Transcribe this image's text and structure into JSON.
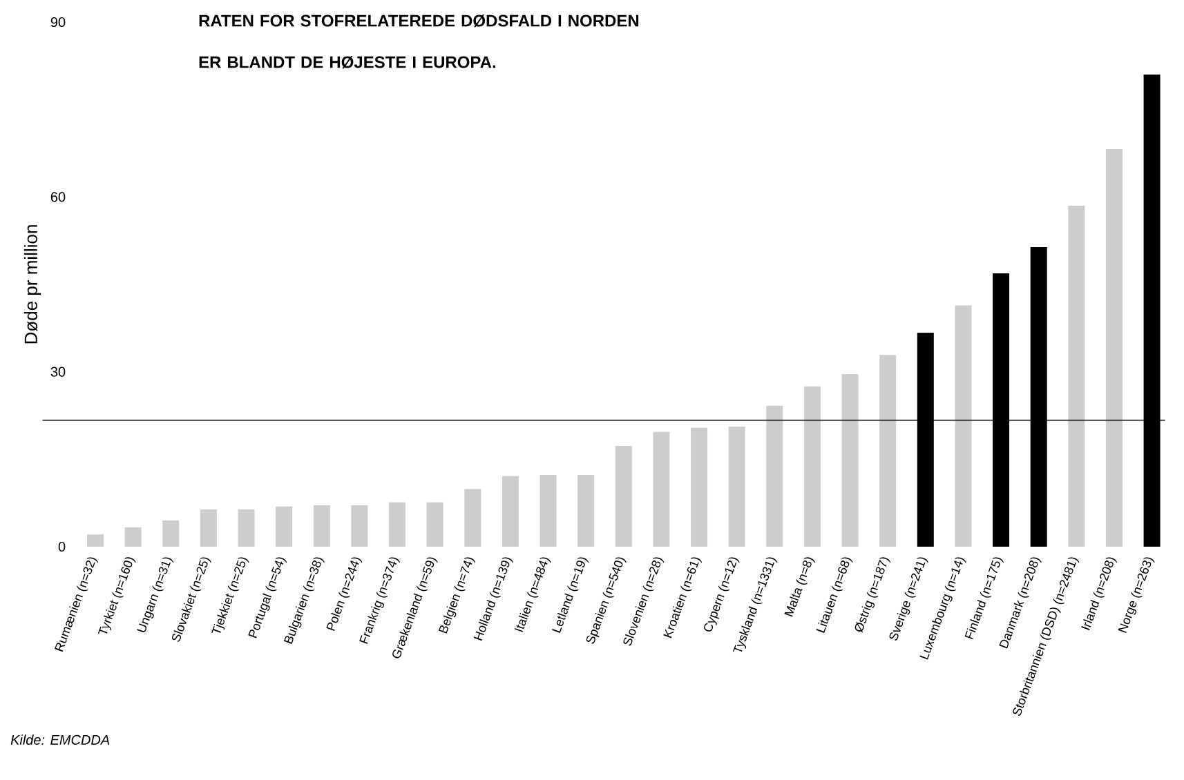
{
  "chart_data": {
    "type": "bar",
    "title": "RATEN FOR STOFRELATEREDE DØDSFALD I NORDEN ER BLANDT DE HØJESTE I EUROPA.",
    "ylabel": "Døde pr million",
    "categories": [
      "Rumænien (n=32)",
      "Tyrkiet (n=160)",
      "Ungarn (n=31)",
      "Slovakiet (n=25)",
      "Tjekkiet (n=25)",
      "Portugal (n=54)",
      "Bulgarien (n=38)",
      "Polen (n=244)",
      "Frankrig (n=374)",
      "Grækenland (n=59)",
      "Belgien (n=74)",
      "Holland (n=139)",
      "Italien (n=484)",
      "Letland (n=19)",
      "Spanien (n=540)",
      "Slovenien (n=28)",
      "Kroatien (n=61)",
      "Cypern (n=12)",
      "Tyskland (n=1331)",
      "Malta (n=8)",
      "Litauen (n=68)",
      "Østrig (n=187)",
      "Sverige (n=241)",
      "Luxembourg (n=14)",
      "Finland (n=175)",
      "Danmark (n=208)",
      "Storbritannien (DSD) (n=2481)",
      "Irland (n=208)",
      "Norge (n=263)"
    ],
    "values": [
      2.1,
      3.3,
      4.5,
      6.4,
      6.4,
      6.9,
      7.1,
      7.1,
      7.6,
      7.6,
      9.9,
      12.1,
      12.3,
      12.3,
      17.3,
      19.7,
      20.4,
      20.6,
      24.2,
      27.5,
      29.6,
      32.9,
      36.7,
      41.4,
      46.9,
      51.4,
      58.5,
      68.2,
      81.0
    ],
    "colors": [
      "#cccdcf",
      "#cccdcf",
      "#cccdcf",
      "#cccdcf",
      "#cccdcf",
      "#cccdcf",
      "#cccdcf",
      "#cccdcf",
      "#cccdcf",
      "#cccdcf",
      "#cccdcf",
      "#cccdcf",
      "#cccdcf",
      "#cccdcf",
      "#cccdcf",
      "#cccdcf",
      "#cccdcf",
      "#cccdcf",
      "#cccdcf",
      "#cccdcf",
      "#cccdcf",
      "#cccdcf",
      "#000000",
      "#cccdcf",
      "#000000",
      "#000000",
      "#cccdcf",
      "#cccdcf",
      "#000000"
    ],
    "ylim": [
      0,
      90
    ],
    "yticks": [
      0,
      30,
      60,
      90
    ],
    "ref_lines": [
      {
        "axis": "y",
        "value": 21.7,
        "color": "#000000"
      }
    ],
    "annotations": [
      "Kilde: EMCDDA"
    ]
  }
}
